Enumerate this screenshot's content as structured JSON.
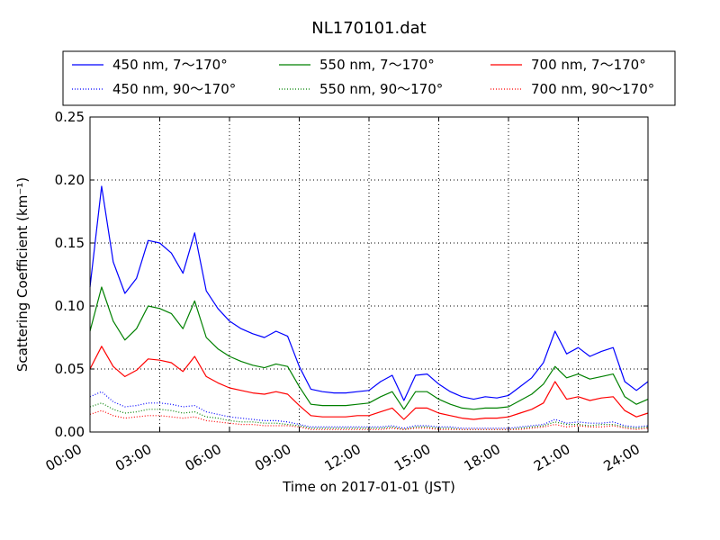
{
  "chart_data": {
    "type": "line",
    "title": "NL170101.dat",
    "xlabel": "Time on 2017-01-01 (JST)",
    "ylabel": "Scattering Coefficient (km⁻¹)",
    "xlim": [
      "00:00",
      "24:00"
    ],
    "ylim": [
      0,
      0.25
    ],
    "grid": true,
    "legend": {
      "placement": "top",
      "columns": 3
    },
    "x_ticks": [
      "00:00",
      "03:00",
      "06:00",
      "09:00",
      "12:00",
      "15:00",
      "18:00",
      "21:00",
      "24:00"
    ],
    "y_ticks": [
      "0.00",
      "0.05",
      "0.10",
      "0.15",
      "0.20",
      "0.25"
    ],
    "x": [
      "00:00",
      "00:30",
      "01:00",
      "01:30",
      "02:00",
      "02:30",
      "03:00",
      "03:30",
      "04:00",
      "04:30",
      "05:00",
      "05:30",
      "06:00",
      "06:30",
      "07:00",
      "07:30",
      "08:00",
      "08:30",
      "09:00",
      "09:30",
      "10:00",
      "10:30",
      "11:00",
      "11:30",
      "12:00",
      "12:30",
      "13:00",
      "13:30",
      "14:00",
      "14:30",
      "15:00",
      "15:30",
      "16:00",
      "16:30",
      "17:00",
      "17:30",
      "18:00",
      "18:30",
      "19:00",
      "19:30",
      "20:00",
      "20:30",
      "21:00",
      "21:30",
      "22:00",
      "22:30",
      "23:00",
      "23:30",
      "24:00"
    ],
    "series": [
      {
        "name": "450 nm, 7～170°",
        "color": "#0000ff",
        "style": "solid",
        "values": [
          0.115,
          0.195,
          0.135,
          0.11,
          0.122,
          0.152,
          0.15,
          0.142,
          0.126,
          0.158,
          0.112,
          0.098,
          0.088,
          0.082,
          0.078,
          0.075,
          0.08,
          0.076,
          0.052,
          0.034,
          0.032,
          0.031,
          0.031,
          0.032,
          0.033,
          0.04,
          0.045,
          0.025,
          0.045,
          0.046,
          0.038,
          0.032,
          0.028,
          0.026,
          0.028,
          0.027,
          0.029,
          0.036,
          0.043,
          0.055,
          0.08,
          0.062,
          0.067,
          0.06,
          0.064,
          0.067,
          0.04,
          0.033,
          0.04
        ]
      },
      {
        "name": "550 nm, 7～170°",
        "color": "#008000",
        "style": "solid",
        "values": [
          0.08,
          0.115,
          0.088,
          0.073,
          0.082,
          0.1,
          0.098,
          0.094,
          0.082,
          0.104,
          0.075,
          0.066,
          0.06,
          0.056,
          0.053,
          0.051,
          0.054,
          0.052,
          0.036,
          0.022,
          0.021,
          0.021,
          0.021,
          0.022,
          0.023,
          0.028,
          0.032,
          0.018,
          0.032,
          0.032,
          0.026,
          0.022,
          0.019,
          0.018,
          0.019,
          0.019,
          0.02,
          0.025,
          0.03,
          0.038,
          0.052,
          0.043,
          0.046,
          0.042,
          0.044,
          0.046,
          0.028,
          0.022,
          0.026
        ]
      },
      {
        "name": "700 nm, 7～170°",
        "color": "#ff0000",
        "style": "solid",
        "values": [
          0.05,
          0.068,
          0.052,
          0.044,
          0.049,
          0.058,
          0.057,
          0.055,
          0.048,
          0.06,
          0.044,
          0.039,
          0.035,
          0.033,
          0.031,
          0.03,
          0.032,
          0.03,
          0.021,
          0.013,
          0.012,
          0.012,
          0.012,
          0.013,
          0.013,
          0.016,
          0.019,
          0.01,
          0.019,
          0.019,
          0.015,
          0.013,
          0.011,
          0.01,
          0.011,
          0.011,
          0.012,
          0.015,
          0.018,
          0.023,
          0.04,
          0.026,
          0.028,
          0.025,
          0.027,
          0.028,
          0.017,
          0.012,
          0.015
        ]
      },
      {
        "name": "450 nm, 90～170°",
        "color": "#0000ff",
        "style": "dotted",
        "values": [
          0.028,
          0.032,
          0.024,
          0.02,
          0.021,
          0.023,
          0.023,
          0.022,
          0.02,
          0.021,
          0.016,
          0.014,
          0.012,
          0.011,
          0.01,
          0.009,
          0.009,
          0.008,
          0.006,
          0.004,
          0.004,
          0.004,
          0.004,
          0.004,
          0.004,
          0.004,
          0.005,
          0.003,
          0.005,
          0.005,
          0.004,
          0.004,
          0.003,
          0.003,
          0.003,
          0.003,
          0.003,
          0.004,
          0.005,
          0.006,
          0.01,
          0.007,
          0.008,
          0.007,
          0.007,
          0.008,
          0.005,
          0.004,
          0.005
        ]
      },
      {
        "name": "550 nm, 90～170°",
        "color": "#008000",
        "style": "dotted",
        "values": [
          0.02,
          0.023,
          0.018,
          0.015,
          0.016,
          0.018,
          0.018,
          0.017,
          0.015,
          0.016,
          0.012,
          0.011,
          0.009,
          0.008,
          0.008,
          0.007,
          0.007,
          0.006,
          0.005,
          0.003,
          0.003,
          0.003,
          0.003,
          0.003,
          0.003,
          0.003,
          0.004,
          0.002,
          0.004,
          0.004,
          0.003,
          0.003,
          0.002,
          0.002,
          0.002,
          0.002,
          0.002,
          0.003,
          0.004,
          0.005,
          0.008,
          0.006,
          0.006,
          0.005,
          0.006,
          0.006,
          0.004,
          0.003,
          0.004
        ]
      },
      {
        "name": "700 nm, 90～170°",
        "color": "#ff0000",
        "style": "dotted",
        "values": [
          0.014,
          0.017,
          0.013,
          0.011,
          0.012,
          0.013,
          0.013,
          0.012,
          0.011,
          0.012,
          0.009,
          0.008,
          0.007,
          0.006,
          0.006,
          0.005,
          0.005,
          0.005,
          0.004,
          0.002,
          0.002,
          0.002,
          0.002,
          0.002,
          0.002,
          0.002,
          0.003,
          0.002,
          0.003,
          0.003,
          0.002,
          0.002,
          0.002,
          0.002,
          0.002,
          0.002,
          0.002,
          0.002,
          0.003,
          0.004,
          0.006,
          0.004,
          0.005,
          0.004,
          0.004,
          0.005,
          0.003,
          0.002,
          0.003
        ]
      }
    ]
  }
}
